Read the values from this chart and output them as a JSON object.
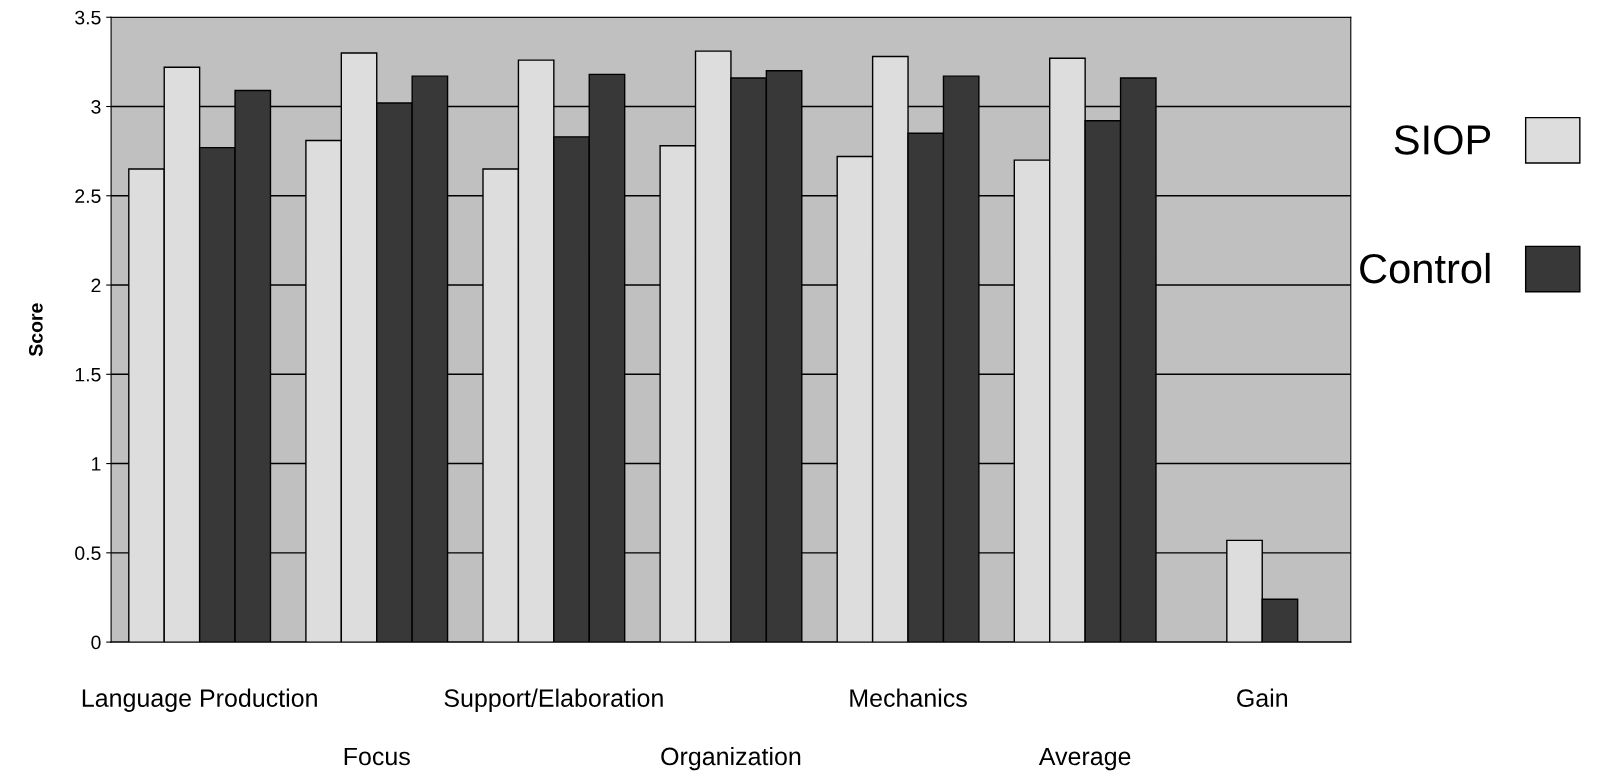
{
  "chart_data": {
    "type": "bar",
    "ylabel": "Score",
    "categories": [
      "Language Production",
      "Focus",
      "Support/Elaboration",
      "Organization",
      "Mechanics",
      "Average",
      "Gain"
    ],
    "series": [
      {
        "name": "SIOP",
        "color": "#dddddd",
        "values": [
          2.65,
          2.81,
          2.65,
          2.78,
          2.72,
          2.7,
          null
        ]
      },
      {
        "color": "#dddddd",
        "values": [
          3.22,
          3.3,
          3.26,
          3.31,
          3.28,
          3.27,
          0.57
        ]
      },
      {
        "name": "Control",
        "color": "#383838",
        "values": [
          2.77,
          3.02,
          2.83,
          3.16,
          2.85,
          2.92,
          0.24
        ]
      },
      {
        "color": "#383838",
        "values": [
          3.09,
          3.17,
          3.18,
          3.2,
          3.17,
          3.16,
          null
        ]
      }
    ],
    "ylim": [
      0,
      3.5
    ],
    "yticks": [
      0,
      0.5,
      1,
      1.5,
      2,
      2.5,
      3,
      3.5
    ],
    "grid": "y",
    "legend": "right"
  }
}
